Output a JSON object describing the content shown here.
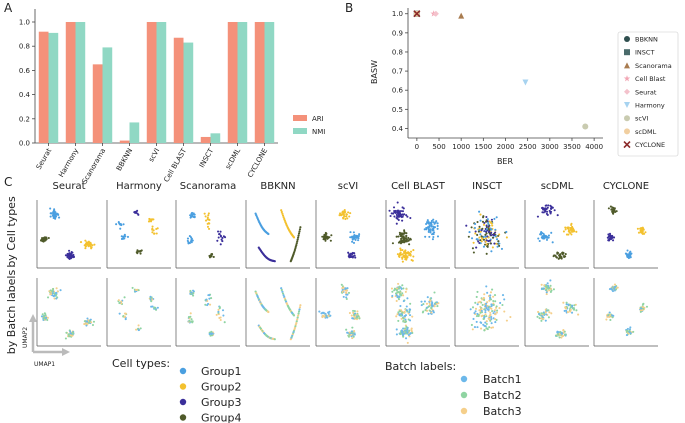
{
  "panel_labels": {
    "a": "A",
    "b": "B",
    "c": "C"
  },
  "chart_data": [
    {
      "type": "bar",
      "panel": "A",
      "categories": [
        "Seurat",
        "Harmony",
        "Scanorama",
        "BBKNN",
        "scVI",
        "Cell BLAST",
        "INSCT",
        "scDML",
        "CYCLONE"
      ],
      "series": [
        {
          "name": "ARI",
          "color": "#f4917a",
          "values": [
            0.92,
            1.0,
            0.65,
            0.02,
            1.0,
            0.87,
            0.05,
            1.0,
            1.0
          ]
        },
        {
          "name": "NMI",
          "color": "#90d8c4",
          "values": [
            0.91,
            1.0,
            0.79,
            0.17,
            1.0,
            0.83,
            0.08,
            1.0,
            1.0
          ]
        }
      ],
      "title": "",
      "xlabel": "",
      "ylabel": "",
      "ylim": [
        0,
        1.0
      ],
      "yticks": [
        "0.0",
        "0.2",
        "0.4",
        "0.6",
        "0.8",
        "1.0"
      ],
      "legend_position": "right"
    },
    {
      "type": "scatter",
      "panel": "B",
      "xlabel": "BER",
      "ylabel": "BASW",
      "xlim": [
        -200,
        4200
      ],
      "ylim": [
        0.35,
        1.03
      ],
      "xticks": [
        "0",
        "500",
        "1000",
        "1500",
        "2000",
        "2500",
        "3000",
        "3500",
        "4000"
      ],
      "yticks": [
        "0.4",
        "0.5",
        "0.6",
        "0.7",
        "0.8",
        "0.9",
        "1.0"
      ],
      "legend_position": "right",
      "points": [
        {
          "name": "BBKNN",
          "x": 0,
          "y": 1.0,
          "marker": "circle",
          "color": "#2f4f4f"
        },
        {
          "name": "INSCT",
          "x": 0,
          "y": 1.0,
          "marker": "square",
          "color": "#4a6b6b"
        },
        {
          "name": "Scanorama",
          "x": 1000,
          "y": 0.99,
          "marker": "triangle-up",
          "color": "#a97c50"
        },
        {
          "name": "Cell Blast",
          "x": 380,
          "y": 1.0,
          "marker": "star",
          "color": "#f2a6b4"
        },
        {
          "name": "Seurat",
          "x": 430,
          "y": 1.0,
          "marker": "diamond",
          "color": "#f4c2cc"
        },
        {
          "name": "Harmony",
          "x": 2450,
          "y": 0.64,
          "marker": "triangle-down",
          "color": "#a7d3f0"
        },
        {
          "name": "scVI",
          "x": 3800,
          "y": 0.41,
          "marker": "circle",
          "color": "#c9cbb0"
        },
        {
          "name": "scDML",
          "x": 0,
          "y": 1.0,
          "marker": "circle",
          "color": "#f1cfa0"
        },
        {
          "name": "CYCLONE",
          "x": 0,
          "y": 1.0,
          "marker": "x",
          "color": "#8b2a2a"
        }
      ]
    }
  ],
  "umap": {
    "methods": [
      "Seurat",
      "Harmony",
      "Scanorama",
      "BBKNN",
      "scVI",
      "Cell BLAST",
      "INSCT",
      "scDML",
      "CYCLONE"
    ],
    "row_labels": [
      "by Cell types",
      "by Batch labels"
    ],
    "axis_labels": {
      "x": "UMAP1",
      "y": "UMAP2"
    },
    "cell_types": {
      "title": "Cell types:",
      "items": [
        {
          "label": "Group1",
          "color": "#4a9fe0"
        },
        {
          "label": "Group2",
          "color": "#f3c12e"
        },
        {
          "label": "Group3",
          "color": "#3b2f9a"
        },
        {
          "label": "Group4",
          "color": "#4f5a2a"
        }
      ]
    },
    "batch_labels": {
      "title": "Batch labels:",
      "items": [
        {
          "label": "Batch1",
          "color": "#6cb8ea"
        },
        {
          "label": "Batch2",
          "color": "#8fd4a2"
        },
        {
          "label": "Batch3",
          "color": "#f5cf8a"
        }
      ]
    }
  }
}
